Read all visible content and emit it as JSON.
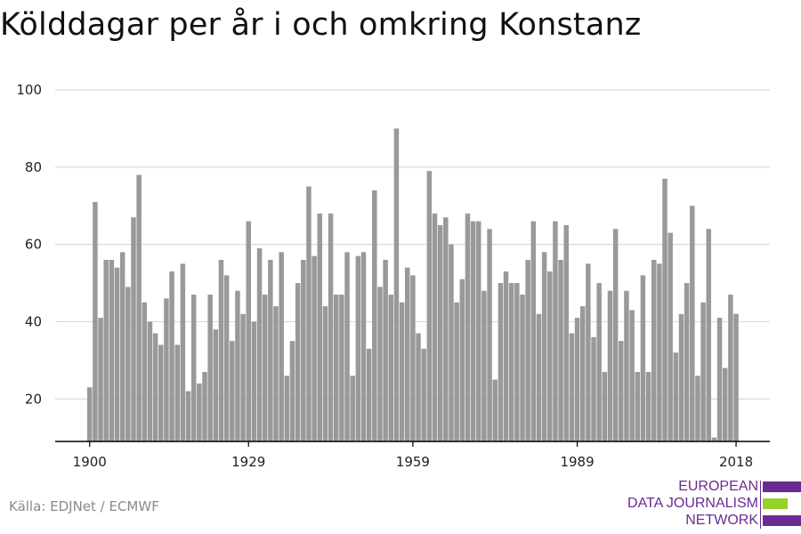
{
  "chart_data": {
    "type": "bar",
    "title": "Kölddagar per år i och omkring Konstanz",
    "xlabel": "",
    "ylabel": "",
    "x_start": 1900,
    "x_end": 2018,
    "xticks": [
      1900,
      1929,
      1959,
      1989,
      2018
    ],
    "yticks": [
      20,
      40,
      60,
      80,
      100
    ],
    "ylim": [
      9,
      100
    ],
    "grid": true,
    "bar_color": "#999999",
    "values": [
      23,
      71,
      41,
      56,
      56,
      54,
      58,
      49,
      67,
      78,
      45,
      40,
      37,
      34,
      46,
      53,
      34,
      55,
      22,
      47,
      24,
      27,
      47,
      38,
      56,
      52,
      35,
      48,
      42,
      66,
      40,
      59,
      47,
      56,
      44,
      58,
      26,
      35,
      50,
      56,
      75,
      57,
      68,
      44,
      68,
      47,
      47,
      58,
      26,
      57,
      58,
      33,
      74,
      49,
      56,
      47,
      90,
      45,
      54,
      52,
      37,
      33,
      79,
      68,
      65,
      67,
      60,
      45,
      51,
      68,
      66,
      66,
      48,
      64,
      25,
      50,
      53,
      50,
      50,
      47,
      56,
      66,
      42,
      58,
      53,
      66,
      56,
      65,
      37,
      41,
      44,
      55,
      36,
      50,
      27,
      48,
      64,
      35,
      48,
      43,
      27,
      52,
      27,
      56,
      55,
      77,
      63,
      32,
      42,
      50,
      70,
      26,
      45,
      64,
      10,
      41,
      28,
      47,
      42
    ]
  },
  "source": "Källa: EDJNet / ECMWF",
  "logo": {
    "line1": "EUROPEAN",
    "line2": "DATA JOURNALISM",
    "line3": "NETWORK",
    "purple": "#6a2c91",
    "green": "#96d12c"
  }
}
